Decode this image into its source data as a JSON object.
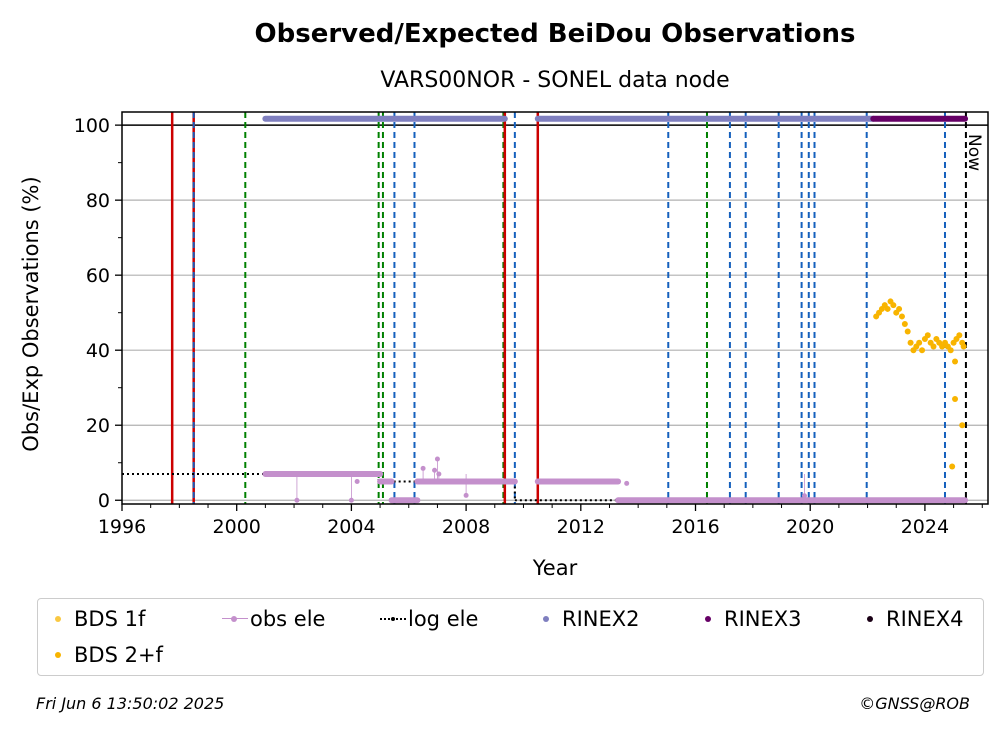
{
  "chart_data": {
    "type": "scatter",
    "title": "Observed/Expected BeiDou Observations",
    "subtitle": "VARS00NOR - SONEL data node",
    "xlabel": "Year",
    "ylabel": "Obs/Exp Observations (%)",
    "xlim": [
      1996.0,
      2026.2
    ],
    "ylim": [
      -1,
      103.5
    ],
    "x_ticks": [
      "1996",
      "2000",
      "2004",
      "2008",
      "2012",
      "2016",
      "2020",
      "2024"
    ],
    "y_ticks": [
      "0",
      "20",
      "40",
      "60",
      "80",
      "100"
    ],
    "grid": "horizontal",
    "now_label": "Now",
    "now_year": 2025.43,
    "vertical_lines": {
      "red_solid": [
        1997.75,
        1998.5,
        2009.35,
        2010.5
      ],
      "blue_dashed": [
        1998.5,
        2005.5,
        2006.2,
        2009.7,
        2015.05,
        2017.2,
        2017.75,
        2018.9,
        2019.7,
        2019.95,
        2020.15,
        2021.97,
        2024.7
      ],
      "green_dashed": [
        2000.3,
        2004.95,
        2005.1,
        2009.3,
        2016.4
      ]
    },
    "series": [
      {
        "name": "BDS 1f",
        "color": "#f9c842",
        "points": []
      },
      {
        "name": "BDS 2+f",
        "color": "#f8b400",
        "points": [
          [
            2022.3,
            49
          ],
          [
            2022.4,
            50
          ],
          [
            2022.5,
            51
          ],
          [
            2022.6,
            52
          ],
          [
            2022.7,
            51
          ],
          [
            2022.8,
            53
          ],
          [
            2022.9,
            52
          ],
          [
            2023.0,
            50
          ],
          [
            2023.1,
            51
          ],
          [
            2023.2,
            49
          ],
          [
            2023.3,
            47
          ],
          [
            2023.4,
            45
          ],
          [
            2023.5,
            42
          ],
          [
            2023.6,
            40
          ],
          [
            2023.7,
            41
          ],
          [
            2023.8,
            42
          ],
          [
            2023.9,
            40
          ],
          [
            2024.0,
            43
          ],
          [
            2024.1,
            44
          ],
          [
            2024.2,
            42
          ],
          [
            2024.3,
            41
          ],
          [
            2024.4,
            43
          ],
          [
            2024.5,
            42
          ],
          [
            2024.6,
            41
          ],
          [
            2024.7,
            42
          ],
          [
            2024.8,
            41
          ],
          [
            2024.9,
            40
          ],
          [
            2025.0,
            42
          ],
          [
            2025.05,
            37
          ],
          [
            2025.1,
            43
          ],
          [
            2025.2,
            44
          ],
          [
            2025.3,
            42
          ],
          [
            2025.35,
            41
          ],
          [
            2024.95,
            9
          ],
          [
            2025.05,
            27
          ],
          [
            2025.3,
            20
          ]
        ]
      },
      {
        "name": "obs ele",
        "color": "#c490cc",
        "segments": [
          [
            2001.0,
            2005.0,
            7
          ],
          [
            2005.0,
            2005.4,
            5
          ],
          [
            2005.4,
            2006.3,
            0
          ],
          [
            2006.3,
            2009.2,
            5
          ],
          [
            2009.2,
            2009.7,
            5
          ],
          [
            2010.5,
            2013.3,
            5
          ],
          [
            2013.3,
            2025.4,
            0
          ]
        ],
        "points": [
          [
            2002.1,
            0
          ],
          [
            2004.0,
            0
          ],
          [
            2004.2,
            5
          ],
          [
            2006.5,
            8.5
          ],
          [
            2006.9,
            8
          ],
          [
            2007.0,
            11
          ],
          [
            2007.05,
            7
          ],
          [
            2008.0,
            1.3
          ],
          [
            2012.0,
            5
          ],
          [
            2013.6,
            4.5
          ],
          [
            2019.8,
            1.2
          ]
        ]
      },
      {
        "name": "log ele",
        "color": "#000000",
        "segments": [
          [
            1996.0,
            2004.95,
            7
          ],
          [
            2004.95,
            2009.7,
            5
          ],
          [
            2009.7,
            2025.43,
            0
          ]
        ]
      },
      {
        "name": "RINEX2",
        "color": "#7f7fbf",
        "spans": [
          [
            2001.0,
            2009.35,
            101.7
          ],
          [
            2010.5,
            2022.2,
            101.7
          ]
        ]
      },
      {
        "name": "RINEX3",
        "color": "#660066",
        "spans": [
          [
            2022.2,
            2025.4,
            101.7
          ]
        ]
      },
      {
        "name": "RINEX4",
        "color": "#1a0015",
        "spans": []
      }
    ]
  },
  "legend": {
    "items": [
      "BDS 1f",
      "obs ele",
      "log ele",
      "RINEX2",
      "RINEX3",
      "RINEX4",
      "BDS 2+f"
    ]
  },
  "footer": {
    "timestamp": "Fri Jun  6 13:50:02 2025",
    "credit": "©GNSS@ROB"
  }
}
